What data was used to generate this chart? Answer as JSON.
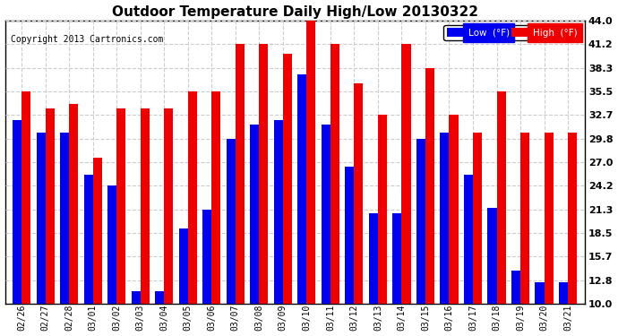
{
  "title": "Outdoor Temperature Daily High/Low 20130322",
  "copyright": "Copyright 2013 Cartronics.com",
  "legend_low": "Low  (°F)",
  "legend_high": "High  (°F)",
  "dates": [
    "02/26",
    "02/27",
    "02/28",
    "03/01",
    "03/02",
    "03/03",
    "03/04",
    "03/05",
    "03/06",
    "03/07",
    "03/08",
    "03/09",
    "03/10",
    "03/11",
    "03/12",
    "03/13",
    "03/14",
    "03/15",
    "03/16",
    "03/17",
    "03/18",
    "03/19",
    "03/20",
    "03/21"
  ],
  "high": [
    35.5,
    33.5,
    34.0,
    27.5,
    33.5,
    33.5,
    33.5,
    35.5,
    35.5,
    41.2,
    41.2,
    40.0,
    44.0,
    41.2,
    36.5,
    32.7,
    41.2,
    38.3,
    32.7,
    30.5,
    35.5,
    30.5,
    30.5,
    30.5
  ],
  "low": [
    32.0,
    30.5,
    30.5,
    25.5,
    24.2,
    11.5,
    11.5,
    19.0,
    21.3,
    29.8,
    31.5,
    32.0,
    37.5,
    31.5,
    26.5,
    20.8,
    20.8,
    29.8,
    30.5,
    25.5,
    21.5,
    14.0,
    12.5,
    12.5
  ],
  "low_color": "#0000ee",
  "high_color": "#ee0000",
  "bg_color": "#ffffff",
  "plot_bg_color": "#ffffff",
  "grid_color": "#cccccc",
  "ylim": [
    10.0,
    44.0
  ],
  "yticks": [
    10.0,
    12.8,
    15.7,
    18.5,
    21.3,
    24.2,
    27.0,
    29.8,
    32.7,
    35.5,
    38.3,
    41.2,
    44.0
  ]
}
